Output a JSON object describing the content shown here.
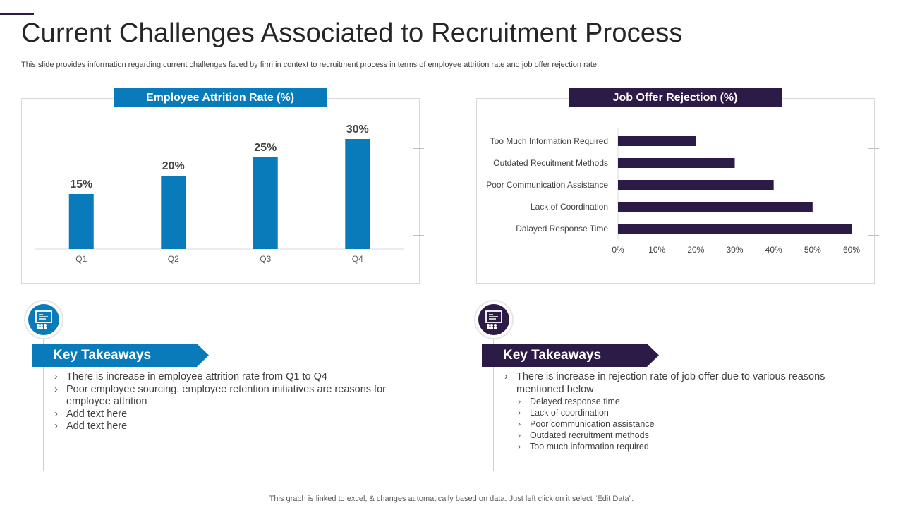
{
  "page": {
    "title": "Current Challenges Associated to Recruitment Process",
    "subtitle": "This slide provides information regarding current challenges faced by firm in context to recruitment process in terms of employee attrition rate and job offer rejection rate.",
    "footer": "This graph is linked to excel, & changes automatically based on data. Just left click on it select “Edit Data”."
  },
  "colors": {
    "blue": "#0a7bba",
    "purple": "#2d1b47",
    "text": "#404040"
  },
  "chart_data": [
    {
      "type": "bar",
      "title": "Employee Attrition Rate (%)",
      "categories": [
        "Q1",
        "Q2",
        "Q3",
        "Q4"
      ],
      "values": [
        15,
        20,
        25,
        30
      ],
      "data_labels": [
        "15%",
        "20%",
        "25%",
        "30%"
      ],
      "ylim": [
        0,
        30
      ],
      "xlabel": "",
      "ylabel": "",
      "grid": false
    },
    {
      "type": "bar",
      "orientation": "horizontal",
      "title": "Job Offer Rejection (%)",
      "categories": [
        "Too Much Information Required",
        "Outdated Recuitment Methods",
        "Poor Communication Assistance",
        "Lack of Coordination",
        "Dalayed Response Time"
      ],
      "values": [
        20,
        30,
        40,
        50,
        60
      ],
      "xlim": [
        0,
        60
      ],
      "xticks": [
        "0%",
        "10%",
        "20%",
        "30%",
        "40%",
        "50%",
        "60%"
      ],
      "grid": false
    }
  ],
  "takeaways": {
    "left": {
      "icon": "presentation-icon",
      "heading": "Key Takeaways",
      "items": [
        "There is increase in employee attrition rate from Q1 to Q4",
        "Poor employee sourcing, employee retention initiatives are reasons for employee attrition",
        "Add text here",
        "Add text here"
      ]
    },
    "right": {
      "icon": "presentation-icon",
      "heading": "Key Takeaways",
      "intro": "There is increase in rejection rate of job offer due to various reasons mentioned below",
      "items": [
        "Delayed response time",
        "Lack of coordination",
        "Poor communication assistance",
        "Outdated recruitment methods",
        "Too much information required"
      ]
    }
  }
}
